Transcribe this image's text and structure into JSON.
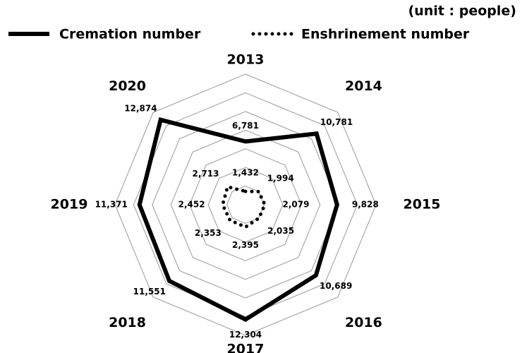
{
  "chart_data": {
    "type": "radar",
    "unit_label": "(unit : people)",
    "categories": [
      "2013",
      "2014",
      "2015",
      "2016",
      "2017",
      "2018",
      "2019",
      "2020"
    ],
    "series": [
      {
        "name": "Cremation number",
        "color": "#000000",
        "style": "solid",
        "values": [
          6781,
          10781,
          9828,
          10689,
          12304,
          11551,
          11371,
          12874
        ],
        "value_labels": [
          "6,781",
          "10,781",
          "9,828",
          "10,689",
          "12,304",
          "11,551",
          "11,371",
          "12,874"
        ]
      },
      {
        "name": "Enshrinement number",
        "color": "#000000",
        "style": "dotted",
        "values": [
          1432,
          1994,
          2079,
          2035,
          2395,
          2353,
          2452,
          2713
        ],
        "value_labels": [
          "1,432",
          "1,994",
          "2,079",
          "2,035",
          "2,395",
          "2,353",
          "2,452",
          "2,713"
        ]
      }
    ],
    "ylim": [
      0,
      14000
    ],
    "legend": "top-left"
  }
}
